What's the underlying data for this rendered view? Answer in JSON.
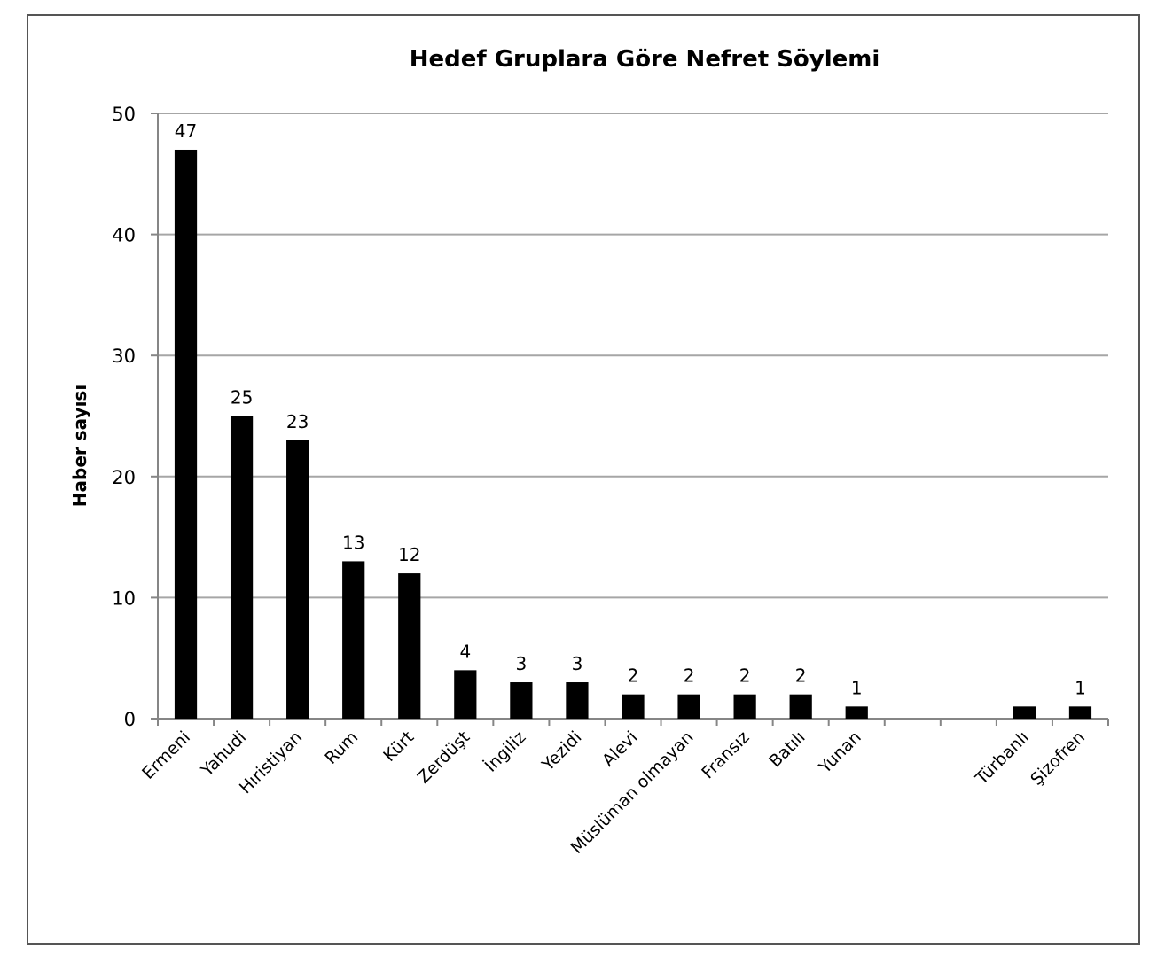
{
  "chart_data": {
    "type": "bar",
    "title": "Hedef Gruplara Göre Nefret Söylemi",
    "xlabel": "",
    "ylabel": "Haber sayısı",
    "ylim": [
      0,
      50
    ],
    "yticks": [
      0,
      10,
      20,
      30,
      40,
      50
    ],
    "grid": true,
    "legend": "none",
    "categories": [
      "Ermeni",
      "Yahudi",
      "Hıristiyan",
      "Rum",
      "Kürt",
      "Zerdüşt",
      "İngiliz",
      "Yezidi",
      "Alevi",
      "Müslüman olmayan",
      "Fransız",
      "Batılı",
      "Yunan",
      "",
      "",
      "Türbanlı",
      "Şizofren"
    ],
    "values": [
      47,
      25,
      23,
      13,
      12,
      4,
      3,
      3,
      2,
      2,
      2,
      2,
      1,
      null,
      null,
      1,
      1
    ],
    "data_labels": [
      "47",
      "25",
      "23",
      "13",
      "12",
      "4",
      "3",
      "3",
      "2",
      "2",
      "2",
      "2",
      "1",
      "",
      "",
      "",
      "1"
    ],
    "colors": {
      "bar": "#000000",
      "grid": "#a6a6a6",
      "axis": "#868686"
    }
  }
}
